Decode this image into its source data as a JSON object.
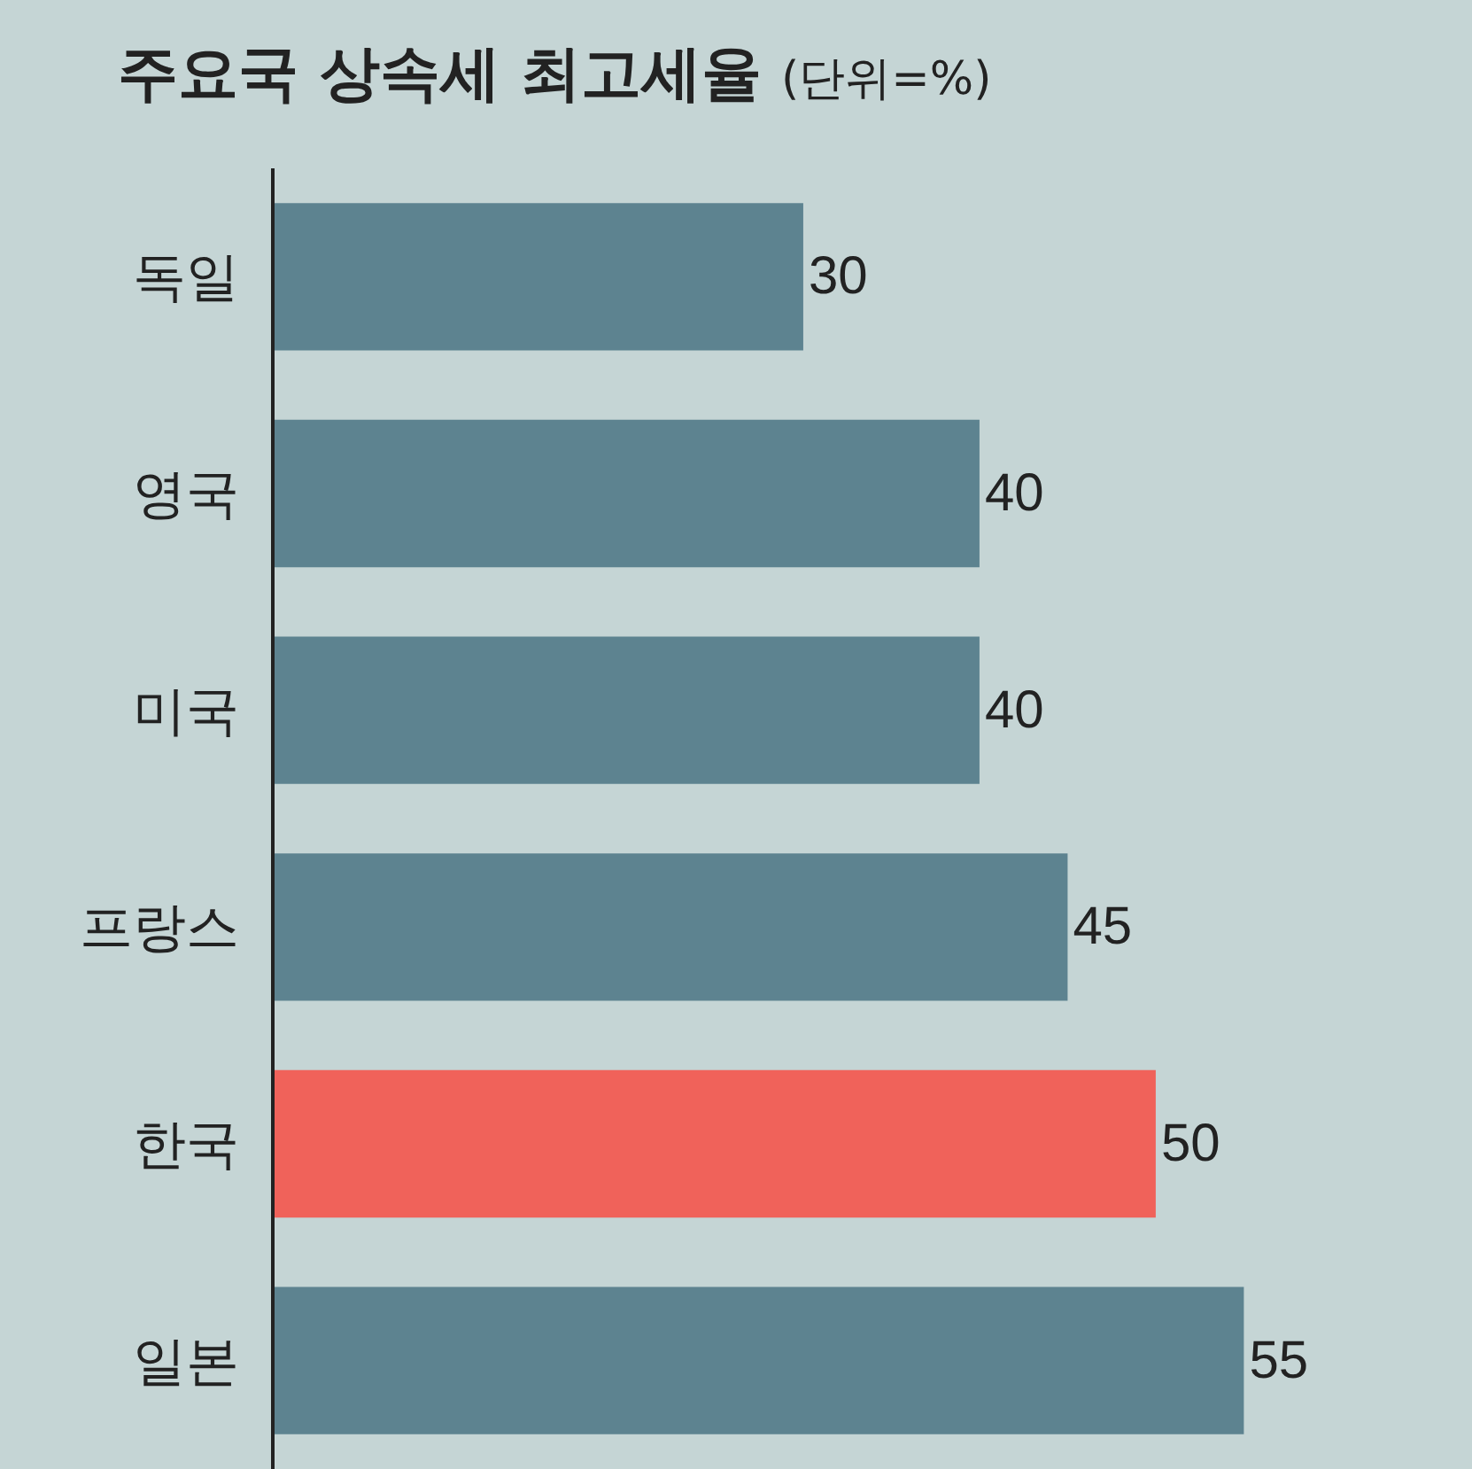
{
  "chart_data": {
    "type": "bar",
    "orientation": "horizontal",
    "title": "주요국 상속세 최고세율",
    "subtitle": "(단위=%)",
    "categories": [
      "독일",
      "영국",
      "미국",
      "프랑스",
      "한국",
      "일본"
    ],
    "values": [
      30,
      40,
      40,
      45,
      50,
      55
    ],
    "colors": [
      "#5d8390",
      "#5d8390",
      "#5d8390",
      "#5d8390",
      "#f0625a",
      "#5d8390"
    ],
    "data_labels": true,
    "tick_labels": "y"
  }
}
